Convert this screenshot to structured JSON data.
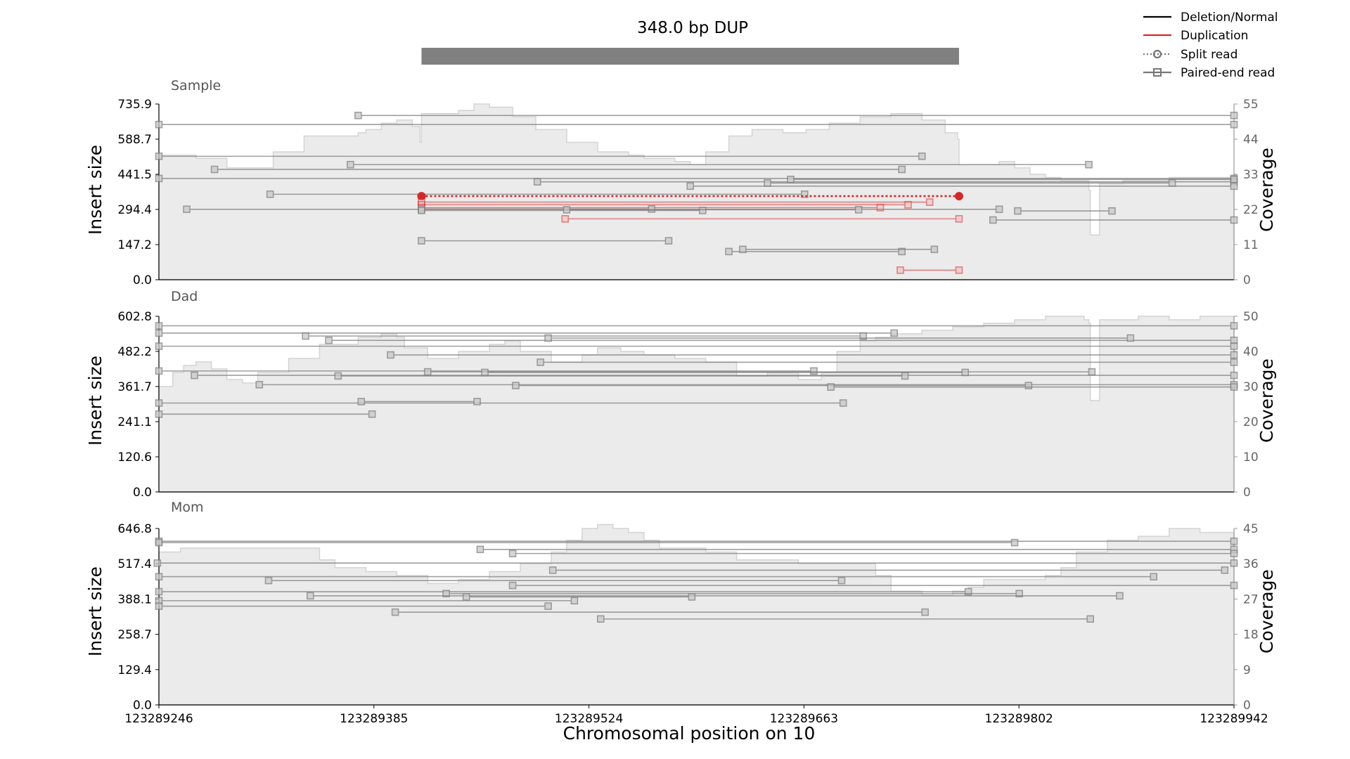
{
  "title": "348.0 bp DUP",
  "legend": [
    {
      "label": "Deletion/Normal",
      "color": "#000000",
      "style": "solid"
    },
    {
      "label": "Duplication",
      "color": "#d62728",
      "style": "solid"
    },
    {
      "label": "Split read",
      "color": "#777777",
      "style": "dotted-circle"
    },
    {
      "label": "Paired-end read",
      "color": "#777777",
      "style": "solid-square"
    }
  ],
  "colors": {
    "normal": "#808080",
    "duplication": "#d62728",
    "coverage_fill": "#ebebeb",
    "coverage_edge": "#d4d4d4",
    "sv_bar": "#808080"
  },
  "sv_region": [
    123289416,
    123289764
  ],
  "xlabel": "Chromosomal position on 10",
  "chart_data": [
    {
      "type": "line",
      "panel": "Sample",
      "xlim": [
        123289246,
        123289942
      ],
      "x_ticks": [
        "123289246",
        "123289385",
        "123289524",
        "123289663",
        "123289802",
        "123289942"
      ],
      "ylabel": "Insert size",
      "ylim": [
        0,
        735.9
      ],
      "y_ticks": [
        "0.0",
        "147.2",
        "294.4",
        "441.5",
        "588.7",
        "735.9"
      ],
      "y2label": "Coverage",
      "y2lim": [
        0,
        55
      ],
      "y2_ticks": [
        "0",
        "11",
        "22",
        "33",
        "44",
        "55"
      ],
      "coverage": {
        "x": [
          123289246,
          123289270,
          123289290,
          123289300,
          123289320,
          123289340,
          123289360,
          123289375,
          123289380,
          123289390,
          123289400,
          123289410,
          123289415,
          123289416,
          123289425,
          123289440,
          123289450,
          123289460,
          123289475,
          123289490,
          123289510,
          123289530,
          123289550,
          123289560,
          123289580,
          123289590,
          123289600,
          123289615,
          123289630,
          123289650,
          123289665,
          123289680,
          123289700,
          123289720,
          123289740,
          123289755,
          123289763,
          123289764,
          123289775,
          123289790,
          123289800,
          123289810,
          123289820,
          123289830,
          123289845,
          123289848,
          123289849,
          123289855,
          123289870,
          123289885,
          123289900,
          123289920,
          123289942
        ],
        "values": [
          39,
          38,
          35,
          35,
          40,
          45,
          45,
          46,
          47,
          49,
          50,
          48,
          43,
          52,
          52,
          53,
          55,
          54,
          51,
          47,
          43,
          40,
          39,
          38,
          37,
          36,
          40,
          45,
          47,
          46,
          47,
          49,
          51,
          52,
          50,
          46,
          44,
          36,
          36,
          37,
          35,
          33,
          32,
          31,
          31,
          28,
          14,
          30,
          31,
          31,
          32,
          32,
          33
        ]
      },
      "reads": [
        {
          "x1": 123289246,
          "x2": 123289942,
          "y": 650,
          "kind": "pe"
        },
        {
          "x1": 123289375,
          "x2": 123289942,
          "y": 688,
          "kind": "pe"
        },
        {
          "x1": 123289246,
          "x2": 123289740,
          "y": 517,
          "kind": "pe"
        },
        {
          "x1": 123289370,
          "x2": 123289848,
          "y": 482,
          "kind": "pe"
        },
        {
          "x1": 123289282,
          "x2": 123289727,
          "y": 462,
          "kind": "pe"
        },
        {
          "x1": 123289246,
          "x2": 123289942,
          "y": 424,
          "kind": "pe"
        },
        {
          "x1": 123289491,
          "x2": 123289942,
          "y": 410,
          "kind": "pe"
        },
        {
          "x1": 123289640,
          "x2": 123289902,
          "y": 405,
          "kind": "pe"
        },
        {
          "x1": 123289590,
          "x2": 123289942,
          "y": 392,
          "kind": "pe"
        },
        {
          "x1": 123289655,
          "x2": 123289942,
          "y": 420,
          "kind": "pe"
        },
        {
          "x1": 123289318,
          "x2": 123289664,
          "y": 358,
          "kind": "pe"
        },
        {
          "x1": 123289416,
          "x2": 123289764,
          "y": 350,
          "kind": "split-dup"
        },
        {
          "x1": 123289416,
          "x2": 123289745,
          "y": 325,
          "kind": "dup"
        },
        {
          "x1": 123289416,
          "x2": 123289731,
          "y": 314,
          "kind": "dup"
        },
        {
          "x1": 123289416,
          "x2": 123289713,
          "y": 302,
          "kind": "dup"
        },
        {
          "x1": 123289264,
          "x2": 123289790,
          "y": 295,
          "kind": "pe"
        },
        {
          "x1": 123289416,
          "x2": 123289565,
          "y": 296,
          "kind": "pe"
        },
        {
          "x1": 123289416,
          "x2": 123289598,
          "y": 290,
          "kind": "pe"
        },
        {
          "x1": 123289510,
          "x2": 123289699,
          "y": 293,
          "kind": "pe"
        },
        {
          "x1": 123289802,
          "x2": 123289863,
          "y": 288,
          "kind": "pe"
        },
        {
          "x1": 123289786,
          "x2": 123289942,
          "y": 250,
          "kind": "pe"
        },
        {
          "x1": 123289509,
          "x2": 123289764,
          "y": 255,
          "kind": "dup"
        },
        {
          "x1": 123289416,
          "x2": 123289576,
          "y": 163,
          "kind": "pe"
        },
        {
          "x1": 123289615,
          "x2": 123289727,
          "y": 118,
          "kind": "pe"
        },
        {
          "x1": 123289624,
          "x2": 123289748,
          "y": 127,
          "kind": "pe"
        },
        {
          "x1": 123289726,
          "x2": 123289764,
          "y": 40,
          "kind": "dup"
        }
      ]
    },
    {
      "type": "line",
      "panel": "Dad",
      "xlim": [
        123289246,
        123289942
      ],
      "x_ticks": [
        "123289246",
        "123289385",
        "123289524",
        "123289663",
        "123289802",
        "123289942"
      ],
      "ylabel": "Insert size",
      "ylim": [
        0,
        602.8
      ],
      "y_ticks": [
        "0.0",
        "120.6",
        "241.1",
        "361.7",
        "482.2",
        "602.8"
      ],
      "y2label": "Coverage",
      "y2lim": [
        0,
        50
      ],
      "y2_ticks": [
        "0",
        "10",
        "20",
        "30",
        "40",
        "50"
      ],
      "coverage": {
        "x": [
          123289246,
          123289255,
          123289262,
          123289270,
          123289280,
          123289290,
          123289300,
          123289310,
          123289330,
          123289350,
          123289375,
          123289390,
          123289400,
          123289405,
          123289420,
          123289440,
          123289460,
          123289470,
          123289480,
          123289500,
          123289520,
          123289530,
          123289545,
          123289560,
          123289580,
          123289600,
          123289620,
          123289640,
          123289660,
          123289675,
          123289685,
          123289700,
          123289710,
          123289720,
          123289740,
          123289760,
          123289780,
          123289800,
          123289820,
          123289845,
          123289848,
          123289849,
          123289855,
          123289880,
          123289900,
          123289920,
          123289942
        ],
        "values": [
          30,
          34,
          36,
          37,
          35,
          32,
          31,
          34,
          38,
          42,
          44,
          45,
          44,
          41,
          38,
          40,
          42,
          43,
          40,
          37,
          39,
          41,
          40,
          39,
          38,
          37,
          33,
          34,
          32,
          34,
          40,
          43,
          44,
          45,
          46,
          47,
          48,
          49,
          50,
          49,
          48,
          26,
          49,
          50,
          49,
          50,
          49
        ]
      },
      "reads": [
        {
          "x1": 123289246,
          "x2": 123289942,
          "y": 570,
          "kind": "pe"
        },
        {
          "x1": 123289246,
          "x2": 123289722,
          "y": 545,
          "kind": "pe"
        },
        {
          "x1": 123289341,
          "x2": 123289702,
          "y": 535,
          "kind": "pe"
        },
        {
          "x1": 123289356,
          "x2": 123289942,
          "y": 520,
          "kind": "pe"
        },
        {
          "x1": 123289498,
          "x2": 123289875,
          "y": 528,
          "kind": "pe"
        },
        {
          "x1": 123289246,
          "x2": 123289942,
          "y": 500,
          "kind": "pe"
        },
        {
          "x1": 123289396,
          "x2": 123289942,
          "y": 470,
          "kind": "pe"
        },
        {
          "x1": 123289493,
          "x2": 123289942,
          "y": 445,
          "kind": "pe"
        },
        {
          "x1": 123289269,
          "x2": 123289942,
          "y": 400,
          "kind": "pe"
        },
        {
          "x1": 123289246,
          "x2": 123289670,
          "y": 415,
          "kind": "pe"
        },
        {
          "x1": 123289420,
          "x2": 123289850,
          "y": 412,
          "kind": "pe"
        },
        {
          "x1": 123289457,
          "x2": 123289768,
          "y": 410,
          "kind": "pe"
        },
        {
          "x1": 123289362,
          "x2": 123289729,
          "y": 398,
          "kind": "pe"
        },
        {
          "x1": 123289311,
          "x2": 123289942,
          "y": 368,
          "kind": "pe"
        },
        {
          "x1": 123289477,
          "x2": 123289809,
          "y": 365,
          "kind": "pe"
        },
        {
          "x1": 123289681,
          "x2": 123289942,
          "y": 360,
          "kind": "pe"
        },
        {
          "x1": 123289246,
          "x2": 123289689,
          "y": 305,
          "kind": "pe"
        },
        {
          "x1": 123289377,
          "x2": 123289452,
          "y": 310,
          "kind": "pe"
        },
        {
          "x1": 123289246,
          "x2": 123289384,
          "y": 267,
          "kind": "pe"
        }
      ]
    },
    {
      "type": "line",
      "panel": "Mom",
      "xlim": [
        123289246,
        123289942
      ],
      "x_ticks": [
        "123289246",
        "123289385",
        "123289524",
        "123289663",
        "123289802",
        "123289942"
      ],
      "ylabel": "Insert size",
      "ylim": [
        0,
        646.8
      ],
      "y_ticks": [
        "0.0",
        "129.4",
        "258.7",
        "388.1",
        "517.4",
        "646.8"
      ],
      "y2label": "Coverage",
      "y2lim": [
        0,
        45
      ],
      "y2_ticks": [
        "0",
        "9",
        "18",
        "27",
        "36",
        "45"
      ],
      "coverage": {
        "x": [
          123289246,
          123289260,
          123289280,
          123289300,
          123289320,
          123289340,
          123289350,
          123289360,
          123289380,
          123289400,
          123289420,
          123289440,
          123289460,
          123289480,
          123289500,
          123289510,
          123289520,
          123289530,
          123289540,
          123289550,
          123289560,
          123289570,
          123289580,
          123289600,
          123289620,
          123289640,
          123289660,
          123289680,
          123289700,
          123289710,
          123289720,
          123289740,
          123289760,
          123289770,
          123289780,
          123289790,
          123289800,
          123289820,
          123289830,
          123289840,
          123289860,
          123289880,
          123289900,
          123289920,
          123289942
        ],
        "values": [
          39,
          40,
          40,
          40,
          40,
          40,
          37,
          35,
          34,
          33,
          31,
          32,
          34,
          36,
          39,
          42,
          45,
          46,
          45,
          44,
          42,
          40,
          40,
          39,
          37,
          37,
          36,
          36,
          36,
          33,
          29,
          28,
          29,
          30,
          32,
          32,
          32,
          33,
          35,
          39,
          42,
          43,
          45,
          44,
          43
        ]
      },
      "reads": [
        {
          "x1": 123289246,
          "x2": 123289942,
          "y": 600,
          "kind": "pe"
        },
        {
          "x1": 123289246,
          "x2": 123289800,
          "y": 595,
          "kind": "pe"
        },
        {
          "x1": 123289454,
          "x2": 123289942,
          "y": 570,
          "kind": "pe"
        },
        {
          "x1": 123289475,
          "x2": 123289942,
          "y": 555,
          "kind": "pe"
        },
        {
          "x1": 123289245,
          "x2": 123289942,
          "y": 520,
          "kind": "pe"
        },
        {
          "x1": 123289501,
          "x2": 123289936,
          "y": 494,
          "kind": "pe"
        },
        {
          "x1": 123289246,
          "x2": 123289890,
          "y": 470,
          "kind": "pe"
        },
        {
          "x1": 123289317,
          "x2": 123289688,
          "y": 456,
          "kind": "pe"
        },
        {
          "x1": 123289475,
          "x2": 123289942,
          "y": 438,
          "kind": "pe"
        },
        {
          "x1": 123289246,
          "x2": 123289770,
          "y": 415,
          "kind": "pe"
        },
        {
          "x1": 123289432,
          "x2": 123289803,
          "y": 408,
          "kind": "pe"
        },
        {
          "x1": 123289344,
          "x2": 123289868,
          "y": 400,
          "kind": "pe"
        },
        {
          "x1": 123289445,
          "x2": 123289591,
          "y": 396,
          "kind": "pe"
        },
        {
          "x1": 123289246,
          "x2": 123289515,
          "y": 382,
          "kind": "pe"
        },
        {
          "x1": 123289246,
          "x2": 123289498,
          "y": 362,
          "kind": "pe"
        },
        {
          "x1": 123289399,
          "x2": 123289742,
          "y": 340,
          "kind": "pe"
        },
        {
          "x1": 123289532,
          "x2": 123289849,
          "y": 315,
          "kind": "pe"
        }
      ]
    }
  ]
}
